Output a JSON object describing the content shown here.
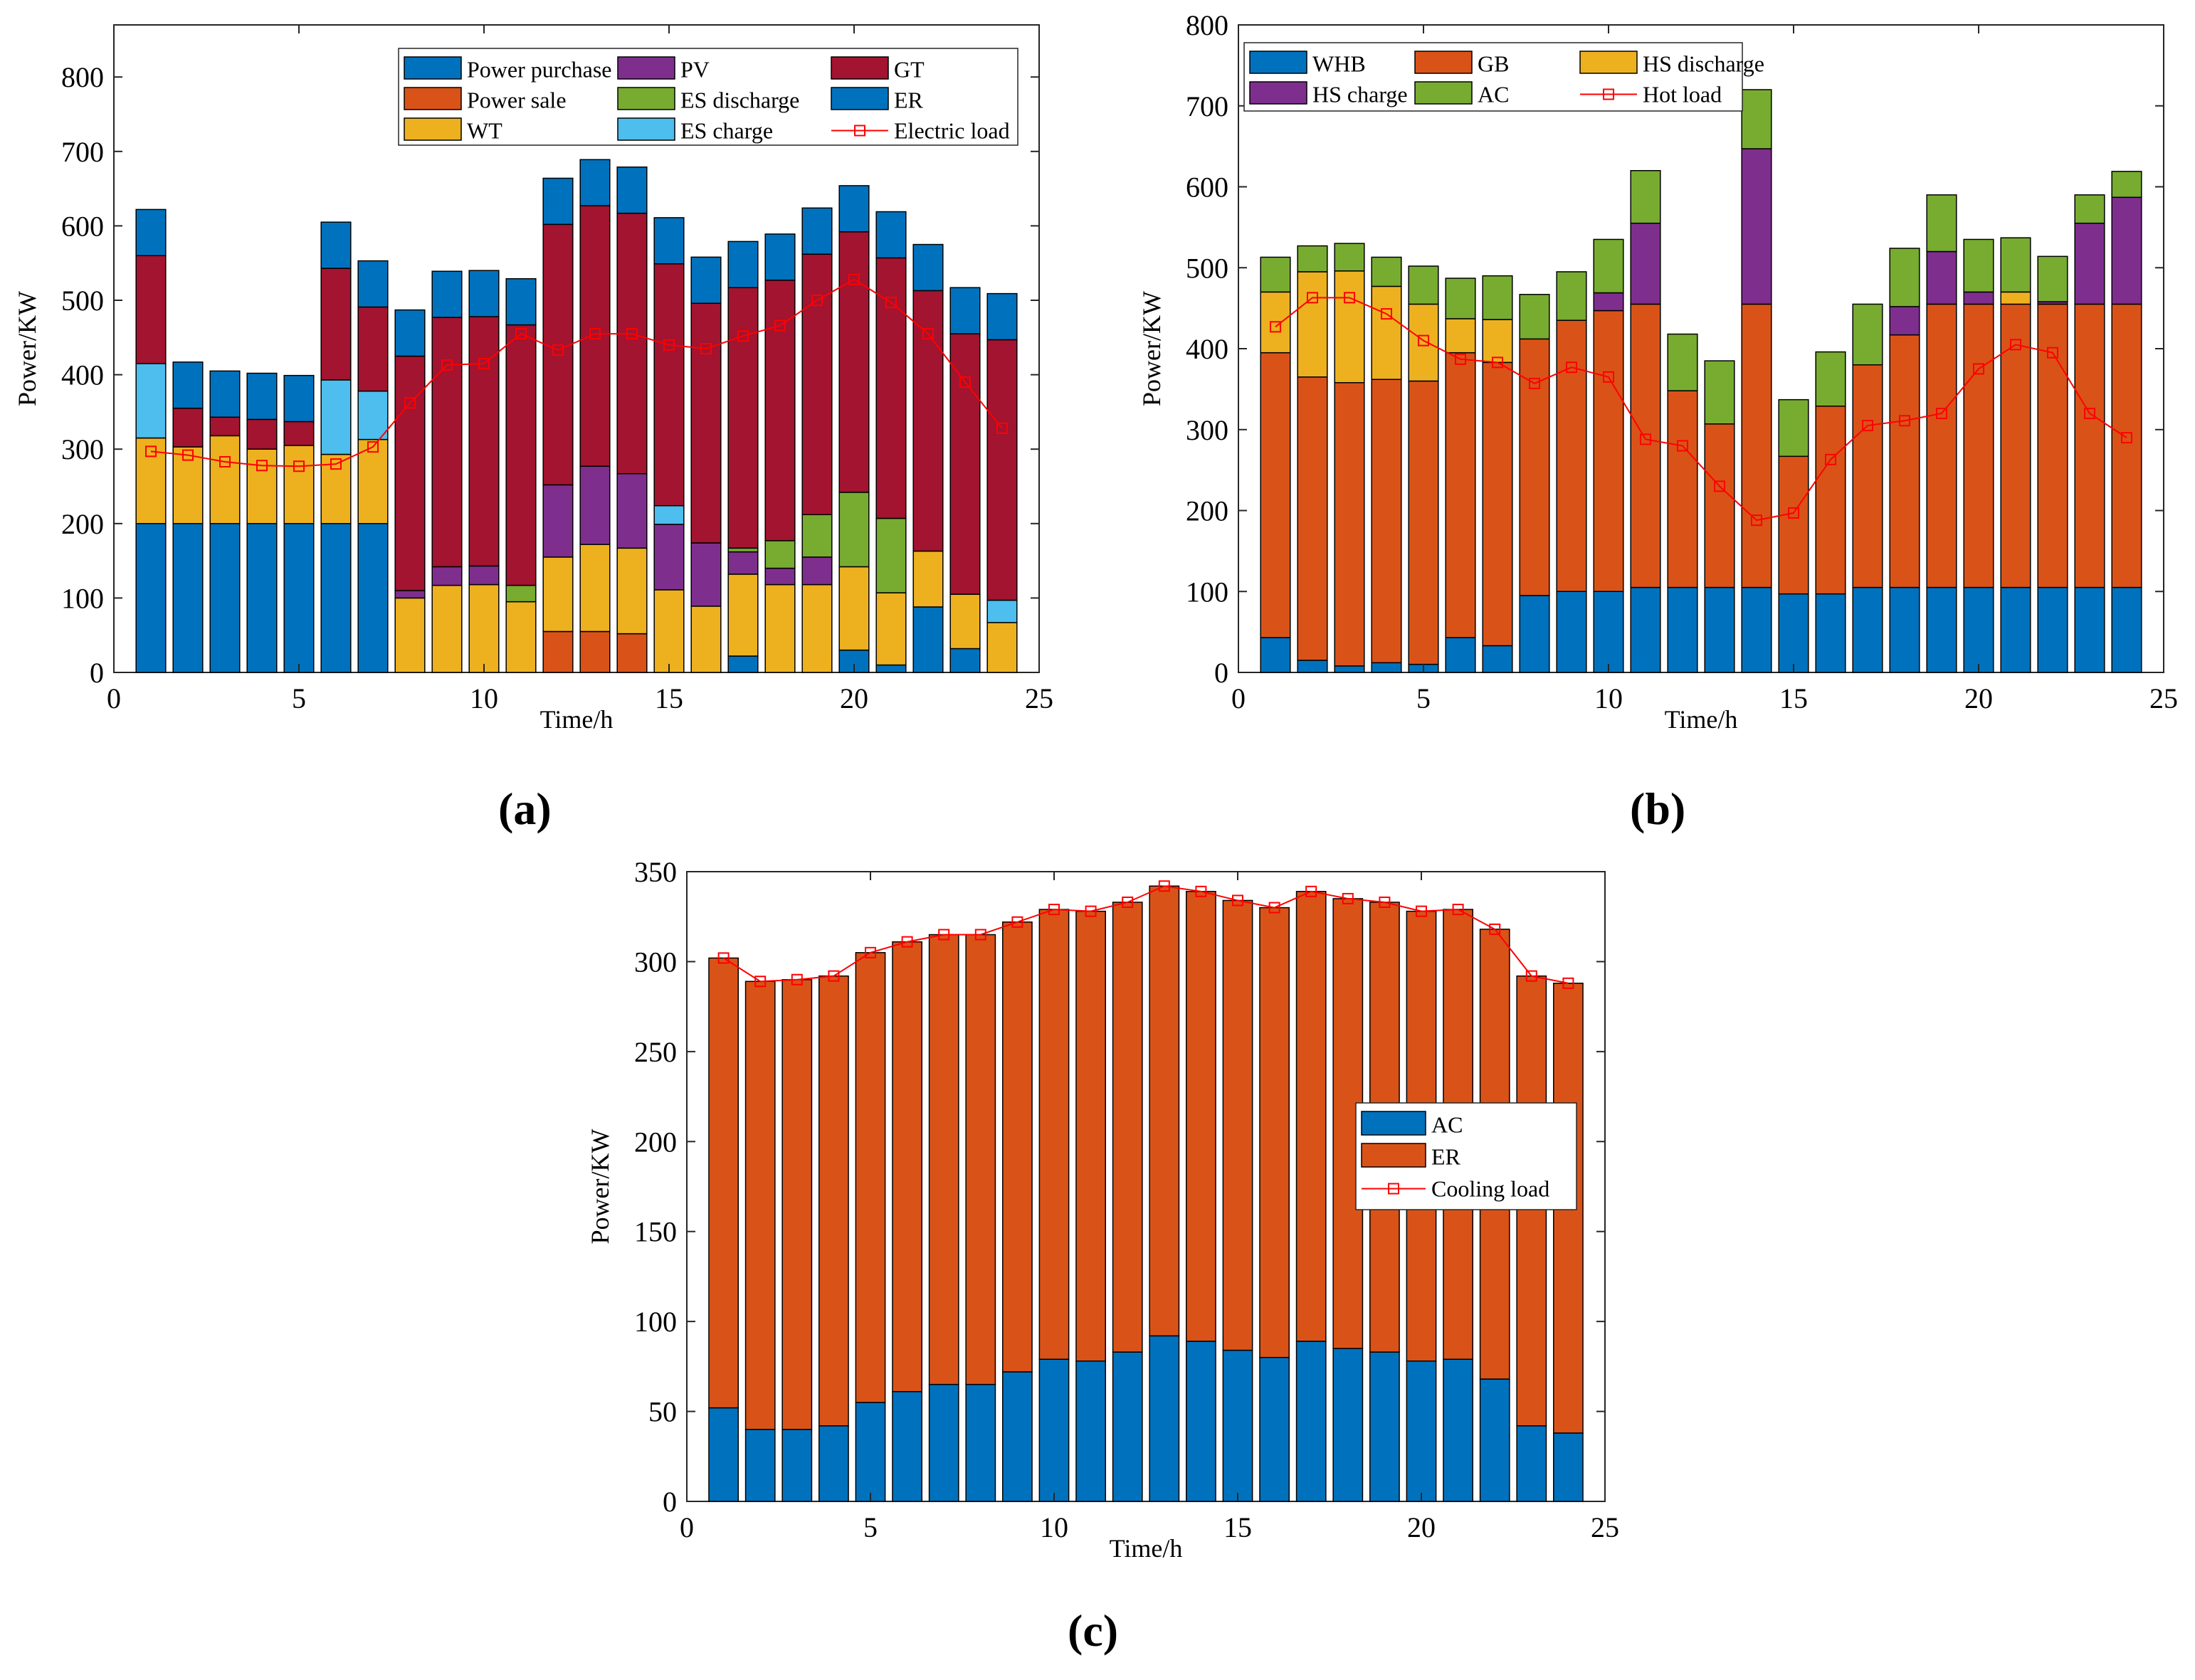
{
  "figure": {
    "panel_labels": [
      "(a)",
      "(b)",
      "(c)"
    ]
  },
  "chart_data": [
    {
      "type": "stacked-bar",
      "title": "",
      "xlabel": "Time/h",
      "ylabel": "Power/KW",
      "xlim": [
        0,
        25
      ],
      "ylim": [
        0,
        870
      ],
      "xticks": [
        0,
        5,
        10,
        15,
        20,
        25
      ],
      "yticks": [
        0,
        100,
        200,
        300,
        400,
        500,
        600,
        700,
        800
      ],
      "legend_position": "top-right",
      "legend_columns": 3,
      "x": [
        1,
        2,
        3,
        4,
        5,
        6,
        7,
        8,
        9,
        10,
        11,
        12,
        13,
        14,
        15,
        16,
        17,
        18,
        19,
        20,
        21,
        22,
        23,
        24
      ],
      "series": [
        {
          "name": "Power purchase",
          "color": "#0072BD",
          "values": [
            200,
            200,
            200,
            200,
            200,
            200,
            200,
            0,
            0,
            0,
            0,
            0,
            0,
            0,
            0,
            0,
            0,
            0,
            0,
            0,
            0,
            0,
            0,
            0
          ]
        },
        {
          "name": "Power sale",
          "color": "#D95319",
          "values": [
            0,
            0,
            0,
            0,
            0,
            0,
            0,
            0,
            0,
            0,
            0,
            55,
            55,
            52,
            0,
            0,
            0,
            0,
            0,
            0,
            0,
            0,
            0,
            0
          ]
        },
        {
          "name": "WT",
          "color": "#EDB120",
          "values": [
            115,
            103,
            118,
            100,
            105,
            93,
            113,
            100,
            117,
            118,
            95,
            100,
            117,
            115,
            111,
            89,
            110,
            118,
            118,
            112,
            97,
            75,
            73,
            67
          ]
        },
        {
          "name": "PV",
          "color": "#7E2F8E",
          "values": [
            0,
            0,
            0,
            0,
            0,
            0,
            0,
            10,
            25,
            25,
            0,
            97,
            105,
            100,
            88,
            85,
            30,
            22,
            37,
            0,
            0,
            0,
            0,
            0
          ]
        },
        {
          "name": "ES discharge",
          "color": "#77AC30",
          "values": [
            0,
            0,
            0,
            0,
            0,
            0,
            0,
            0,
            0,
            0,
            22,
            0,
            0,
            0,
            0,
            0,
            5,
            37,
            57,
            100,
            100,
            0,
            0,
            0
          ]
        },
        {
          "name": "ES charge",
          "color": "#4DBEEE",
          "values": [
            100,
            0,
            0,
            0,
            0,
            100,
            65,
            0,
            0,
            0,
            0,
            0,
            0,
            0,
            25,
            0,
            0,
            0,
            0,
            0,
            0,
            0,
            0,
            30
          ]
        },
        {
          "name": "GT",
          "color": "#A2142F",
          "values": [
            145,
            52,
            25,
            40,
            32,
            150,
            113,
            315,
            335,
            335,
            350,
            350,
            350,
            350,
            325,
            322,
            350,
            350,
            350,
            350,
            350,
            350,
            350,
            350
          ]
        },
        {
          "name": "ER",
          "color": "#0072BD",
          "values": [
            62,
            62,
            62,
            62,
            62,
            62,
            62,
            62,
            62,
            62,
            62,
            62,
            62,
            62,
            62,
            62,
            62,
            62,
            62,
            62,
            62,
            62,
            62,
            62
          ]
        }
      ],
      "bottom_series": {
        "name": "Power purchase (below)",
        "color": "#0072BD",
        "values": [
          0,
          0,
          0,
          0,
          0,
          0,
          0,
          0,
          0,
          0,
          0,
          0,
          0,
          0,
          0,
          0,
          22,
          0,
          0,
          30,
          10,
          88,
          32,
          0
        ]
      },
      "line": {
        "name": "Electric load",
        "color": "#FF0000",
        "values": [
          297,
          292,
          283,
          278,
          277,
          280,
          303,
          362,
          413,
          415,
          455,
          433,
          455,
          455,
          440,
          435,
          452,
          466,
          500,
          528,
          497,
          455,
          390,
          328
        ]
      }
    },
    {
      "type": "stacked-bar",
      "title": "",
      "xlabel": "Time/h",
      "ylabel": "Power/KW",
      "xlim": [
        0,
        25
      ],
      "ylim": [
        0,
        800
      ],
      "xticks": [
        0,
        5,
        10,
        15,
        20,
        25
      ],
      "yticks": [
        0,
        100,
        200,
        300,
        400,
        500,
        600,
        700,
        800
      ],
      "legend_position": "top-left",
      "legend_columns": 3,
      "x": [
        1,
        2,
        3,
        4,
        5,
        6,
        7,
        8,
        9,
        10,
        11,
        12,
        13,
        14,
        15,
        16,
        17,
        18,
        19,
        20,
        21,
        22,
        23,
        24
      ],
      "series": [
        {
          "name": "WHB",
          "color": "#0072BD",
          "values": [
            43,
            15,
            8,
            12,
            10,
            43,
            33,
            95,
            100,
            100,
            105,
            105,
            105,
            105,
            97,
            97,
            105,
            105,
            105,
            105,
            105,
            105,
            105,
            105
          ]
        },
        {
          "name": "GB",
          "color": "#D95319",
          "values": [
            352,
            350,
            350,
            350,
            350,
            352,
            350,
            317,
            335,
            347,
            350,
            243,
            202,
            350,
            170,
            232,
            275,
            312,
            350,
            350,
            350,
            350,
            350,
            350
          ]
        },
        {
          "name": "HS discharge",
          "color": "#EDB120",
          "values": [
            75,
            130,
            138,
            115,
            95,
            42,
            53,
            0,
            0,
            0,
            0,
            0,
            0,
            0,
            0,
            0,
            0,
            0,
            0,
            0,
            15,
            0,
            0,
            0
          ]
        },
        {
          "name": "HS charge",
          "color": "#7E2F8E",
          "values": [
            0,
            0,
            0,
            0,
            0,
            0,
            0,
            0,
            0,
            22,
            100,
            0,
            0,
            192,
            0,
            0,
            0,
            35,
            65,
            15,
            0,
            3,
            100,
            132
          ]
        },
        {
          "name": "AC",
          "color": "#77AC30",
          "values": [
            43,
            32,
            34,
            36,
            47,
            50,
            54,
            55,
            60,
            66,
            65,
            70,
            78,
            73,
            70,
            67,
            75,
            72,
            70,
            65,
            67,
            56,
            35,
            32
          ]
        }
      ],
      "line": {
        "name": "Hot load",
        "color": "#FF0000",
        "values": [
          427,
          463,
          463,
          443,
          410,
          387,
          383,
          357,
          377,
          365,
          288,
          280,
          230,
          188,
          197,
          263,
          305,
          311,
          320,
          375,
          405,
          395,
          320,
          290
        ]
      }
    },
    {
      "type": "stacked-bar",
      "title": "",
      "xlabel": "Time/h",
      "ylabel": "Power/KW",
      "xlim": [
        0,
        25
      ],
      "ylim": [
        0,
        350
      ],
      "xticks": [
        0,
        5,
        10,
        15,
        20,
        25
      ],
      "yticks": [
        0,
        50,
        100,
        150,
        200,
        250,
        300,
        350
      ],
      "legend_position": "right",
      "legend_columns": 1,
      "x": [
        1,
        2,
        3,
        4,
        5,
        6,
        7,
        8,
        9,
        10,
        11,
        12,
        13,
        14,
        15,
        16,
        17,
        18,
        19,
        20,
        21,
        22,
        23,
        24
      ],
      "series": [
        {
          "name": "AC",
          "color": "#0072BD",
          "values": [
            52,
            40,
            40,
            42,
            55,
            61,
            65,
            65,
            72,
            79,
            78,
            83,
            92,
            89,
            84,
            80,
            89,
            85,
            83,
            78,
            79,
            68,
            42,
            38
          ]
        },
        {
          "name": "ER",
          "color": "#D95319",
          "values": [
            250,
            249,
            250,
            250,
            250,
            250,
            250,
            250,
            250,
            250,
            250,
            250,
            250,
            250,
            250,
            250,
            250,
            250,
            250,
            250,
            250,
            250,
            250,
            250
          ]
        }
      ],
      "line": {
        "name": "Cooling load",
        "color": "#FF0000",
        "values": [
          302,
          289,
          290,
          292,
          305,
          311,
          315,
          315,
          322,
          329,
          328,
          333,
          342,
          339,
          334,
          330,
          339,
          335,
          333,
          328,
          329,
          318,
          292,
          288
        ]
      }
    }
  ]
}
